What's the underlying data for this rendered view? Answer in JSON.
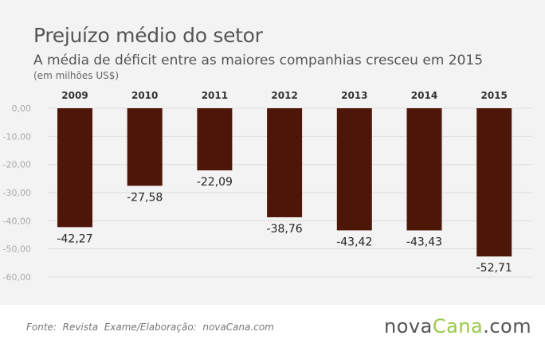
{
  "header": {
    "title": "Prejuízo médio do setor",
    "subtitle": "A média de déficit entre as maiores companhias cresceu em 2015",
    "units": "(em milhões US$)"
  },
  "footer": {
    "source": "Fonte:  Revista  Exame/Elaboração:  novaCana.com",
    "brand": {
      "part1": "nova",
      "part2": "Cana",
      "part3": ".com"
    }
  },
  "colors": {
    "bar": "#4e1608",
    "grid": "#dddddd",
    "axis_text": "#aaaaaa",
    "brand_green": "#9ac84a"
  },
  "chart_data": {
    "type": "bar",
    "title": "Prejuízo médio do setor",
    "subtitle": "A média de déficit entre as maiores companhias cresceu em 2015",
    "ylabel": "(em milhões US$)",
    "categories": [
      "2009",
      "2010",
      "2011",
      "2012",
      "2013",
      "2014",
      "2015"
    ],
    "values": [
      -42.27,
      -27.58,
      -22.09,
      -38.76,
      -43.42,
      -43.43,
      -52.71
    ],
    "value_labels": [
      "-42,27",
      "-27,58",
      "-22,09",
      "-38,76",
      "-43,42",
      "-43,43",
      "-52,71"
    ],
    "ylim": [
      -60,
      0
    ],
    "yticks": [
      0,
      -10,
      -20,
      -30,
      -40,
      -50,
      -60
    ],
    "ytick_labels": [
      "0,00",
      "-10,00",
      "-20,00",
      "-30,00",
      "-40,00",
      "-50,00",
      "-60,00"
    ],
    "grid": true,
    "legend": "none",
    "category_labels_position": "top"
  }
}
